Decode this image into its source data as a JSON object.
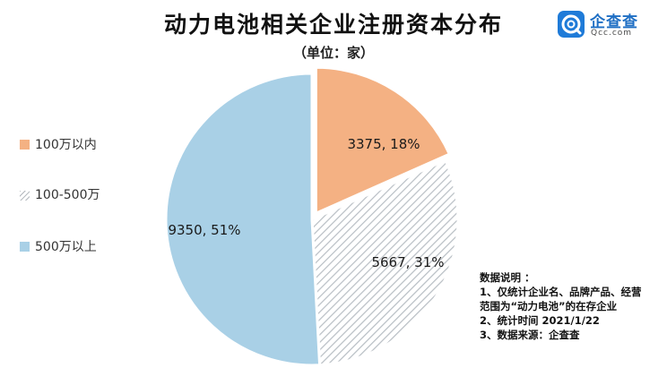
{
  "header": {
    "title": "动力电池相关企业注册资本分布",
    "subtitle": "（单位：家）"
  },
  "logo": {
    "name": "企查查",
    "domain": "Qcc.com",
    "icon": "qcc-logo-icon",
    "color": "#1f7bd8"
  },
  "chart_data": {
    "type": "pie",
    "title": "动力电池相关企业注册资本分布",
    "unit": "（单位：家）",
    "legend_position": "left",
    "slices": [
      {
        "name": "100万以内",
        "value": 3375,
        "percent": 18,
        "label": "3375, 18%",
        "color": "#f4b183",
        "pattern": "solid",
        "exploded": true
      },
      {
        "name": "100-500万",
        "value": 5667,
        "percent": 31,
        "label": "5667, 31%",
        "color": "#c8cdd2",
        "pattern": "diagonal-stripes"
      },
      {
        "name": "500万以上",
        "value": 9350,
        "percent": 51,
        "label": "9350, 51%",
        "color": "#a9d0e6",
        "pattern": "solid"
      }
    ]
  },
  "notes": {
    "lines": [
      "数据说明 ：",
      "1、仅统计企业名、品牌产品、经营",
      "范围为“动力电池”的在存企业",
      "2、统计时间  2021/1/22",
      "3、数据来源：企查查"
    ]
  }
}
